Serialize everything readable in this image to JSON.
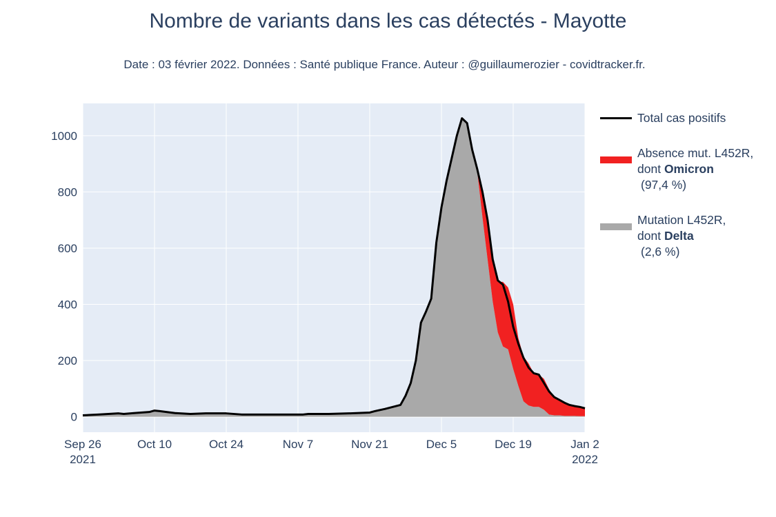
{
  "chart_data": {
    "type": "area",
    "title": "Nombre de variants dans les cas détectés - Mayotte",
    "subtitle": "Date : 03 février 2022. Données : Santé publique France. Auteur : @guillaumerozier - covidtracker.fr.",
    "xlabel": "",
    "ylabel": "",
    "x_range": [
      "2021-09-26",
      "2022-01-02"
    ],
    "ylim": [
      -55,
      1115
    ],
    "yticks": [
      0,
      200,
      400,
      600,
      800,
      1000
    ],
    "xticks": [
      {
        "date": "2021-09-26",
        "label": "Sep 26",
        "label2": "2021"
      },
      {
        "date": "2021-10-10",
        "label": "Oct 10",
        "label2": ""
      },
      {
        "date": "2021-10-24",
        "label": "Oct 24",
        "label2": ""
      },
      {
        "date": "2021-11-07",
        "label": "Nov 7",
        "label2": ""
      },
      {
        "date": "2021-11-21",
        "label": "Nov 21",
        "label2": ""
      },
      {
        "date": "2021-12-05",
        "label": "Dec 5",
        "label2": ""
      },
      {
        "date": "2021-12-19",
        "label": "Dec 19",
        "label2": ""
      },
      {
        "date": "2022-01-02",
        "label": "Jan 2",
        "label2": "2022"
      }
    ],
    "grid": true,
    "legend_position": "right",
    "series": [
      {
        "name": "Total cas positifs",
        "color": "#000000",
        "style": "line",
        "x": [
          "2021-09-26",
          "2021-09-29",
          "2021-10-03",
          "2021-10-04",
          "2021-10-06",
          "2021-10-09",
          "2021-10-10",
          "2021-10-11",
          "2021-10-14",
          "2021-10-17",
          "2021-10-20",
          "2021-10-24",
          "2021-10-27",
          "2021-10-31",
          "2021-11-04",
          "2021-11-08",
          "2021-11-09",
          "2021-11-13",
          "2021-11-17",
          "2021-11-21",
          "2021-11-22",
          "2021-11-24",
          "2021-11-27",
          "2021-11-28",
          "2021-11-29",
          "2021-11-30",
          "2021-12-01",
          "2021-12-02",
          "2021-12-03",
          "2021-12-04",
          "2021-12-05",
          "2021-12-06",
          "2021-12-07",
          "2021-12-08",
          "2021-12-09",
          "2021-12-10",
          "2021-12-11",
          "2021-12-12",
          "2021-12-13",
          "2021-12-14",
          "2021-12-15",
          "2021-12-16",
          "2021-12-17",
          "2021-12-18",
          "2021-12-19",
          "2021-12-20",
          "2021-12-21",
          "2021-12-22",
          "2021-12-23",
          "2021-12-24",
          "2021-12-25",
          "2021-12-26",
          "2021-12-27",
          "2021-12-28",
          "2021-12-29",
          "2021-12-30",
          "2021-12-31",
          "2022-01-01",
          "2022-01-02"
        ],
        "y": [
          5,
          8,
          12,
          10,
          13,
          17,
          22,
          20,
          13,
          10,
          12,
          12,
          8,
          8,
          8,
          8,
          10,
          10,
          12,
          15,
          20,
          28,
          42,
          75,
          120,
          200,
          335,
          375,
          420,
          620,
          745,
          840,
          920,
          1000,
          1062,
          1045,
          950,
          880,
          800,
          700,
          560,
          485,
          470,
          410,
          320,
          260,
          210,
          175,
          155,
          150,
          120,
          90,
          70,
          60,
          50,
          42,
          38,
          35,
          30
        ]
      },
      {
        "name": "Absence mut. L452R, dont Omicron (97,4 %)",
        "label_prefix": "Absence mut. L452R,",
        "label_mid": "dont ",
        "label_bold": "Omicron",
        "label_suffix": "(97,4 %)",
        "color": "#f12121",
        "style": "area",
        "x": [
          "2021-12-11",
          "2021-12-12",
          "2021-12-13",
          "2021-12-14",
          "2021-12-15",
          "2021-12-16",
          "2021-12-17",
          "2021-12-18",
          "2021-12-19",
          "2021-12-20",
          "2021-12-21",
          "2021-12-22",
          "2021-12-23",
          "2021-12-24",
          "2021-12-25",
          "2021-12-26",
          "2021-12-27",
          "2021-12-28",
          "2021-12-29",
          "2021-12-30",
          "2021-12-31",
          "2022-01-01",
          "2022-01-02"
        ],
        "y": [
          0,
          10,
          90,
          140,
          150,
          180,
          230,
          220,
          230,
          170,
          160,
          150,
          120,
          115,
          110,
          90,
          65,
          55,
          45,
          40,
          35,
          30,
          28
        ]
      },
      {
        "name": "Mutation L452R, dont Delta (2,6 %)",
        "label_prefix": "Mutation L452R,",
        "label_mid": "dont ",
        "label_bold": "Delta",
        "label_suffix": "(2,6 %)",
        "color": "#a9a9a9",
        "style": "area",
        "x": [
          "2021-09-26",
          "2021-09-29",
          "2021-10-03",
          "2021-10-04",
          "2021-10-06",
          "2021-10-09",
          "2021-10-10",
          "2021-10-11",
          "2021-10-14",
          "2021-10-17",
          "2021-10-20",
          "2021-10-24",
          "2021-10-27",
          "2021-10-31",
          "2021-11-04",
          "2021-11-08",
          "2021-11-09",
          "2021-11-13",
          "2021-11-17",
          "2021-11-21",
          "2021-11-22",
          "2021-11-24",
          "2021-11-27",
          "2021-11-28",
          "2021-11-29",
          "2021-11-30",
          "2021-12-01",
          "2021-12-02",
          "2021-12-03",
          "2021-12-04",
          "2021-12-05",
          "2021-12-06",
          "2021-12-07",
          "2021-12-08",
          "2021-12-09",
          "2021-12-10",
          "2021-12-11",
          "2021-12-12",
          "2021-12-13",
          "2021-12-14",
          "2021-12-15",
          "2021-12-16",
          "2021-12-17",
          "2021-12-18",
          "2021-12-19",
          "2021-12-20",
          "2021-12-21",
          "2021-12-22",
          "2021-12-23",
          "2021-12-24",
          "2021-12-25",
          "2021-12-26",
          "2021-12-27",
          "2021-12-28",
          "2021-12-29",
          "2021-12-30",
          "2021-12-31",
          "2022-01-01",
          "2022-01-02"
        ],
        "y": [
          5,
          8,
          12,
          10,
          13,
          17,
          22,
          20,
          13,
          10,
          12,
          12,
          8,
          8,
          8,
          8,
          10,
          10,
          12,
          15,
          20,
          28,
          42,
          75,
          120,
          200,
          335,
          375,
          420,
          620,
          745,
          840,
          920,
          1000,
          1062,
          1045,
          950,
          870,
          710,
          560,
          410,
          300,
          250,
          240,
          170,
          110,
          55,
          40,
          35,
          35,
          25,
          8,
          5,
          5,
          3,
          3,
          3,
          2,
          2
        ]
      }
    ]
  }
}
